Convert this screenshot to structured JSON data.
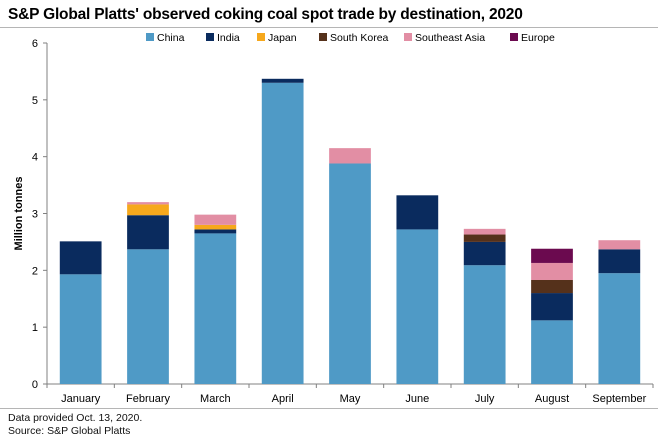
{
  "title": "S&P Global Platts' observed coking coal spot trade by destination, 2020",
  "footnotes": {
    "line1": "Data provided Oct. 13, 2020.",
    "line2": "Source: S&P Global Platts"
  },
  "chart_data": {
    "type": "bar",
    "stacked": true,
    "title": "S&P Global Platts' observed coking coal spot trade by destination, 2020",
    "xlabel": "",
    "ylabel": "Million tonnes",
    "ylim": [
      0,
      6
    ],
    "yticks": [
      "0",
      "1",
      "2",
      "3",
      "4",
      "5",
      "6"
    ],
    "legend_position": "top",
    "categories": [
      "January",
      "February",
      "March",
      "April",
      "May",
      "June",
      "July",
      "August",
      "September"
    ],
    "series": [
      {
        "name": "China",
        "color": "#4f9ac6",
        "values": [
          1.93,
          2.37,
          2.65,
          5.3,
          3.88,
          2.72,
          2.09,
          1.12,
          1.95
        ]
      },
      {
        "name": "India",
        "color": "#0a2b5e",
        "values": [
          0.58,
          0.6,
          0.07,
          0.07,
          0,
          0.6,
          0.41,
          0.48,
          0.42
        ]
      },
      {
        "name": "Japan",
        "color": "#f6a81c",
        "values": [
          0,
          0.19,
          0.08,
          0,
          0,
          0,
          0,
          0,
          0
        ]
      },
      {
        "name": "South Korea",
        "color": "#55311b",
        "values": [
          0,
          0,
          0,
          0,
          0,
          0,
          0.13,
          0.23,
          0
        ]
      },
      {
        "name": "Southeast Asia",
        "color": "#e28ea4",
        "values": [
          0,
          0.04,
          0.18,
          0,
          0.27,
          0,
          0.1,
          0.3,
          0.16
        ]
      },
      {
        "name": "Europe",
        "color": "#6b0a4f",
        "values": [
          0,
          0,
          0,
          0,
          0,
          0,
          0,
          0.25,
          0
        ]
      }
    ]
  }
}
